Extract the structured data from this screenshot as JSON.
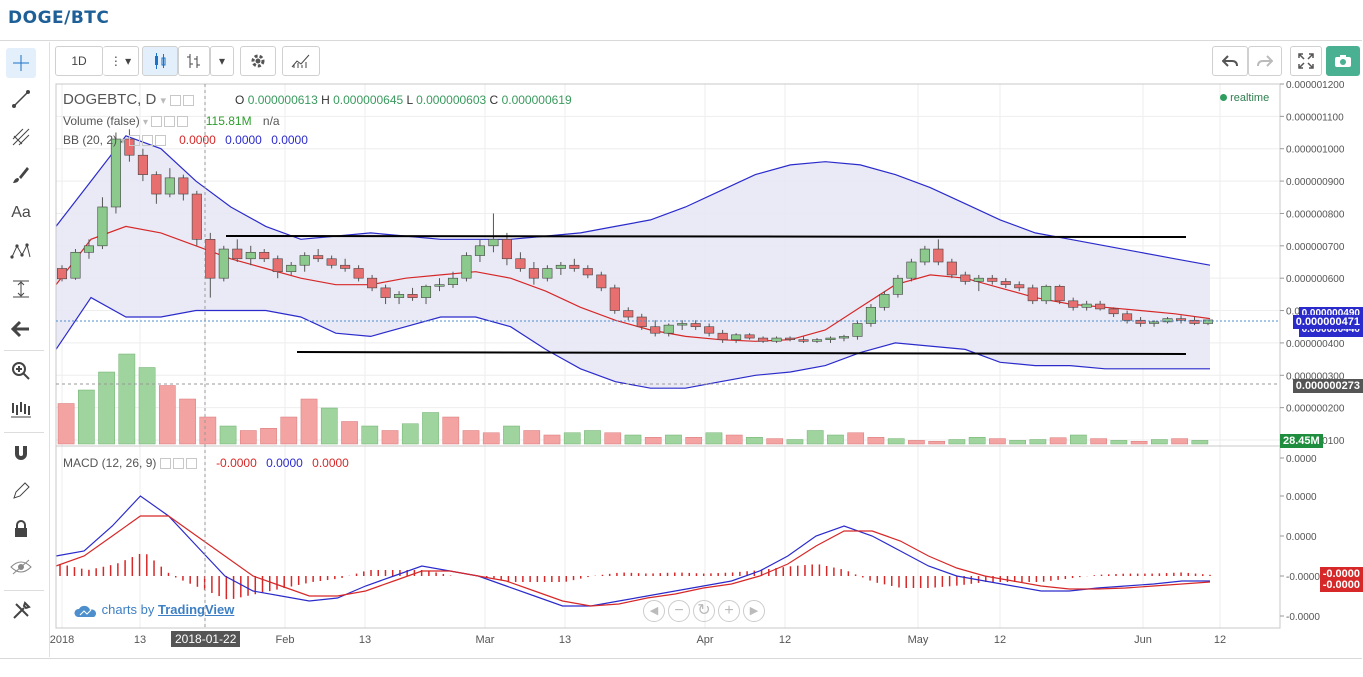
{
  "page_title": "DOGE/BTC",
  "toolbar": {
    "interval": "1D",
    "icons": [
      "more-vert-icon",
      "dropdown-caret-icon",
      "candles-icon",
      "bars-icon",
      "dropdown-caret-icon",
      "gear-icon",
      "indicators-icon",
      "undo-icon",
      "redo-icon",
      "fullscreen-icon",
      "camera-icon"
    ]
  },
  "sidebar": {
    "icons": [
      "crosshair-icon",
      "trendline-icon",
      "pitchfork-icon",
      "brush-icon",
      "text-icon",
      "pattern-icon",
      "measure-icon",
      "back-arrow-icon",
      "zoom-icon",
      "bars-zoom-icon",
      "magnet-icon",
      "pencil-icon",
      "lock-icon",
      "eye-hide-icon",
      "tools-icon"
    ],
    "text_tool_label": "Aa"
  },
  "legend": {
    "symbol": "DOGEBTC, D",
    "o_label": "O",
    "o": "0.000000613",
    "h_label": "H",
    "h": "0.000000645",
    "l_label": "L",
    "l": "0.000000603",
    "c_label": "C",
    "c": "0.000000619",
    "realtime": "realtime",
    "volume_label": "Volume (false)",
    "volume_value": "115.81M",
    "volume_na": "n/a",
    "bb_label": "BB (20, 2)",
    "bb_v1": "0.0000",
    "bb_v2": "0.0000",
    "bb_v3": "0.0000",
    "macd_label": "MACD (12, 26, 9)",
    "macd_v1": "-0.0000",
    "macd_v2": "0.0000",
    "macd_v3": "0.0000"
  },
  "price_badges": {
    "last": "0.000000471",
    "bb_upper_partial": "0.000000490",
    "bb_lower_partial": "0.000000440",
    "cursor": "0.000000273",
    "volume": "28.45M",
    "macd_red": "-0.0000",
    "macd_red2": "-0.0000"
  },
  "watermark": {
    "prefix": "charts by",
    "brand": "TradingView"
  },
  "x_tooltip": "2018-01-22",
  "colors": {
    "up": "#8cc98c",
    "down": "#e86f6f",
    "bb_band": "#2b2bcc",
    "bb_basis": "#d62828",
    "fill": "#e6e6f5",
    "volume_up": "#9fd49f",
    "volume_down": "#f4a3a3"
  },
  "chart_data": {
    "type": "candlestick",
    "x_axis_ticks": [
      "2018",
      "13",
      "",
      "Feb",
      "13",
      "Mar",
      "13",
      "Apr",
      "12",
      "May",
      "12",
      "Jun",
      "12"
    ],
    "price_axis": {
      "ticks": [
        "0.000001200",
        "0.000001100",
        "0.000001000",
        "0.000000900",
        "0.000000800",
        "0.000000700",
        "0.000000600",
        "0.000000500",
        "0.000000400",
        "0.000000300",
        "0.000000200",
        "0.000000100"
      ],
      "range": [
        1e-07,
        1.2e-06
      ]
    },
    "macd_axis": {
      "ticks": [
        "0.0000",
        "0.0000",
        "0.0000",
        "-0.0000",
        "-0.0000"
      ]
    },
    "candles": [
      [
        630,
        640,
        590,
        598
      ],
      [
        600,
        690,
        595,
        680
      ],
      [
        680,
        720,
        660,
        700
      ],
      [
        700,
        850,
        690,
        820
      ],
      [
        820,
        1050,
        800,
        1030
      ],
      [
        1030,
        1060,
        960,
        980
      ],
      [
        980,
        1000,
        900,
        920
      ],
      [
        920,
        930,
        830,
        860
      ],
      [
        860,
        940,
        850,
        910
      ],
      [
        910,
        920,
        840,
        860
      ],
      [
        860,
        870,
        700,
        720
      ],
      [
        720,
        740,
        540,
        600
      ],
      [
        600,
        700,
        590,
        690
      ],
      [
        690,
        720,
        650,
        660
      ],
      [
        660,
        700,
        640,
        680
      ],
      [
        680,
        690,
        650,
        660
      ],
      [
        660,
        670,
        600,
        620
      ],
      [
        620,
        650,
        610,
        640
      ],
      [
        640,
        680,
        620,
        670
      ],
      [
        670,
        690,
        650,
        660
      ],
      [
        660,
        670,
        630,
        640
      ],
      [
        640,
        660,
        620,
        630
      ],
      [
        630,
        640,
        590,
        600
      ],
      [
        600,
        610,
        560,
        570
      ],
      [
        570,
        580,
        520,
        540
      ],
      [
        540,
        560,
        520,
        550
      ],
      [
        550,
        570,
        530,
        540
      ],
      [
        540,
        580,
        520,
        575
      ],
      [
        575,
        600,
        560,
        580
      ],
      [
        580,
        620,
        570,
        600
      ],
      [
        600,
        680,
        590,
        670
      ],
      [
        670,
        720,
        650,
        700
      ],
      [
        700,
        800,
        680,
        720
      ],
      [
        720,
        740,
        640,
        660
      ],
      [
        660,
        680,
        620,
        630
      ],
      [
        630,
        650,
        580,
        600
      ],
      [
        600,
        640,
        590,
        630
      ],
      [
        630,
        650,
        610,
        640
      ],
      [
        640,
        660,
        620,
        630
      ],
      [
        630,
        640,
        600,
        610
      ],
      [
        610,
        620,
        560,
        570
      ],
      [
        570,
        580,
        490,
        500
      ],
      [
        500,
        510,
        470,
        480
      ],
      [
        480,
        490,
        440,
        450
      ],
      [
        450,
        470,
        420,
        430
      ],
      [
        430,
        460,
        420,
        455
      ],
      [
        455,
        470,
        440,
        460
      ],
      [
        460,
        470,
        440,
        450
      ],
      [
        450,
        460,
        420,
        430
      ],
      [
        430,
        440,
        400,
        410
      ],
      [
        410,
        430,
        400,
        425
      ],
      [
        425,
        430,
        410,
        415
      ],
      [
        415,
        420,
        400,
        405
      ],
      [
        405,
        420,
        400,
        415
      ],
      [
        415,
        420,
        405,
        410
      ],
      [
        410,
        420,
        400,
        405
      ],
      [
        405,
        415,
        400,
        410
      ],
      [
        410,
        420,
        400,
        415
      ],
      [
        415,
        425,
        405,
        420
      ],
      [
        420,
        470,
        410,
        460
      ],
      [
        460,
        520,
        450,
        510
      ],
      [
        510,
        560,
        500,
        550
      ],
      [
        550,
        610,
        540,
        600
      ],
      [
        600,
        660,
        590,
        650
      ],
      [
        650,
        700,
        640,
        690
      ],
      [
        690,
        720,
        640,
        650
      ],
      [
        650,
        660,
        600,
        610
      ],
      [
        610,
        620,
        580,
        590
      ],
      [
        590,
        610,
        560,
        600
      ],
      [
        600,
        610,
        580,
        590
      ],
      [
        590,
        600,
        570,
        580
      ],
      [
        580,
        590,
        560,
        570
      ],
      [
        570,
        580,
        520,
        530
      ],
      [
        530,
        580,
        520,
        575
      ],
      [
        575,
        580,
        520,
        530
      ],
      [
        530,
        540,
        500,
        510
      ],
      [
        510,
        530,
        500,
        520
      ],
      [
        520,
        530,
        500,
        505
      ],
      [
        505,
        510,
        480,
        490
      ],
      [
        490,
        500,
        460,
        470
      ],
      [
        470,
        480,
        450,
        460
      ],
      [
        460,
        470,
        450,
        465
      ],
      [
        465,
        480,
        460,
        475
      ],
      [
        475,
        485,
        460,
        470
      ],
      [
        470,
        480,
        455,
        460
      ],
      [
        460,
        470,
        455,
        471
      ]
    ],
    "bb_upper": [
      760,
      900,
      1040,
      1000,
      900,
      820,
      760,
      720,
      730,
      740,
      730,
      720,
      720,
      720,
      730,
      740,
      760,
      780,
      820,
      870,
      920,
      950,
      960,
      950,
      920,
      880,
      830,
      780,
      740,
      720,
      700,
      680,
      660,
      640
    ],
    "bb_basis": [
      580,
      720,
      760,
      740,
      700,
      660,
      630,
      600,
      580,
      580,
      600,
      610,
      620,
      600,
      560,
      510,
      470,
      440,
      420,
      410,
      405,
      410,
      440,
      510,
      580,
      610,
      600,
      570,
      540,
      520,
      510,
      500,
      490,
      475
    ],
    "bb_lower": [
      380,
      540,
      480,
      480,
      500,
      500,
      500,
      480,
      430,
      420,
      450,
      480,
      480,
      450,
      380,
      320,
      280,
      260,
      260,
      280,
      300,
      310,
      330,
      370,
      400,
      390,
      380,
      340,
      330,
      330,
      320,
      320,
      320,
      320
    ],
    "volume": [
      [
        90,
        0
      ],
      [
        120,
        1
      ],
      [
        160,
        1
      ],
      [
        200,
        1
      ],
      [
        170,
        1
      ],
      [
        130,
        0
      ],
      [
        100,
        0
      ],
      [
        60,
        0
      ],
      [
        40,
        1
      ],
      [
        30,
        0
      ],
      [
        35,
        0
      ],
      [
        60,
        0
      ],
      [
        100,
        0
      ],
      [
        80,
        1
      ],
      [
        50,
        0
      ],
      [
        40,
        1
      ],
      [
        30,
        0
      ],
      [
        45,
        1
      ],
      [
        70,
        1
      ],
      [
        60,
        0
      ],
      [
        30,
        0
      ],
      [
        25,
        0
      ],
      [
        40,
        1
      ],
      [
        30,
        0
      ],
      [
        20,
        0
      ],
      [
        25,
        1
      ],
      [
        30,
        1
      ],
      [
        25,
        0
      ],
      [
        20,
        1
      ],
      [
        15,
        0
      ],
      [
        20,
        1
      ],
      [
        15,
        0
      ],
      [
        25,
        1
      ],
      [
        20,
        0
      ],
      [
        15,
        1
      ],
      [
        12,
        0
      ],
      [
        10,
        1
      ],
      [
        30,
        1
      ],
      [
        20,
        1
      ],
      [
        25,
        0
      ],
      [
        15,
        0
      ],
      [
        12,
        1
      ],
      [
        8,
        0
      ],
      [
        6,
        0
      ],
      [
        10,
        1
      ],
      [
        15,
        1
      ],
      [
        12,
        0
      ],
      [
        8,
        1
      ],
      [
        10,
        1
      ],
      [
        14,
        0
      ],
      [
        20,
        1
      ],
      [
        12,
        0
      ],
      [
        8,
        1
      ],
      [
        6,
        0
      ],
      [
        10,
        1
      ],
      [
        12,
        0
      ],
      [
        8,
        1
      ]
    ],
    "macd": [
      0.2,
      0.25,
      0.5,
      0.8,
      0.6,
      0.3,
      0.0,
      -0.15,
      -0.2,
      -0.25,
      -0.22,
      -0.1,
      0.0,
      0.1,
      0.05,
      0.0,
      -0.1,
      -0.2,
      -0.3,
      -0.3,
      -0.25,
      -0.2,
      -0.15,
      -0.1,
      -0.05,
      0.05,
      0.2,
      0.4,
      0.5,
      0.4,
      0.25,
      0.1,
      0.0,
      -0.05,
      -0.1,
      -0.15,
      -0.15,
      -0.12,
      -0.1,
      -0.08,
      -0.05,
      -0.05
    ],
    "macd_signal": [
      0.1,
      0.2,
      0.4,
      0.6,
      0.6,
      0.4,
      0.2,
      0.0,
      -0.1,
      -0.2,
      -0.2,
      -0.15,
      -0.05,
      0.05,
      0.05,
      0.0,
      -0.05,
      -0.15,
      -0.25,
      -0.3,
      -0.28,
      -0.22,
      -0.18,
      -0.12,
      -0.08,
      0.0,
      0.12,
      0.3,
      0.45,
      0.45,
      0.35,
      0.2,
      0.08,
      0.0,
      -0.05,
      -0.1,
      -0.13,
      -0.13,
      -0.12,
      -0.1,
      -0.08,
      -0.06
    ]
  }
}
